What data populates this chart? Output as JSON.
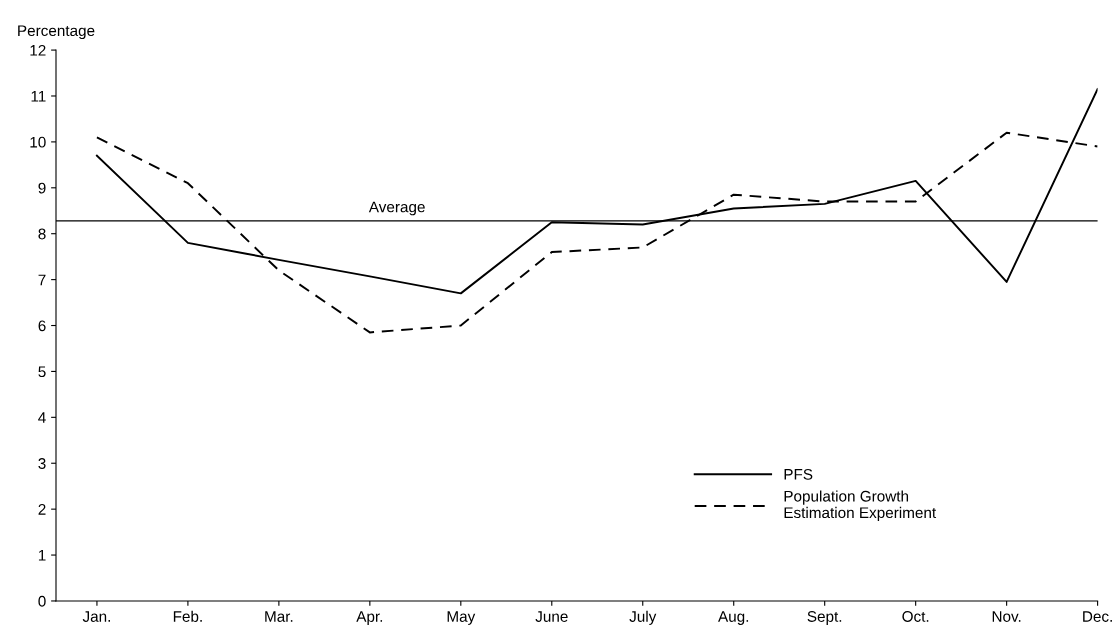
{
  "chart_data": {
    "type": "line",
    "ylabel": "Percentage",
    "categories": [
      "Jan.",
      "Feb.",
      "Mar.",
      "Apr.",
      "May",
      "June",
      "July",
      "Aug.",
      "Sept.",
      "Oct.",
      "Nov.",
      "Dec."
    ],
    "series": [
      {
        "name": "PFS",
        "color": "#000000",
        "line_style": "solid",
        "values": [
          9.7,
          7.8,
          7.43,
          7.07,
          6.7,
          8.25,
          8.2,
          8.55,
          8.65,
          9.15,
          6.95,
          11.15
        ]
      },
      {
        "name": "Population Growth\nEstimation Experiment",
        "color": "#000000",
        "line_style": "dashed",
        "values": [
          10.1,
          9.1,
          7.2,
          5.85,
          6.0,
          7.6,
          7.7,
          8.85,
          8.7,
          8.7,
          10.2,
          9.9
        ]
      }
    ],
    "ylim": [
      0,
      12
    ],
    "yticks": [
      0,
      1,
      2,
      3,
      4,
      5,
      6,
      7,
      8,
      9,
      10,
      11,
      12
    ],
    "ref_lines": [
      {
        "axis": "y",
        "value": 8.28,
        "label": "Average",
        "color": "#000000"
      }
    ],
    "grid": false,
    "legend": "bottom right",
    "marker": "none"
  }
}
